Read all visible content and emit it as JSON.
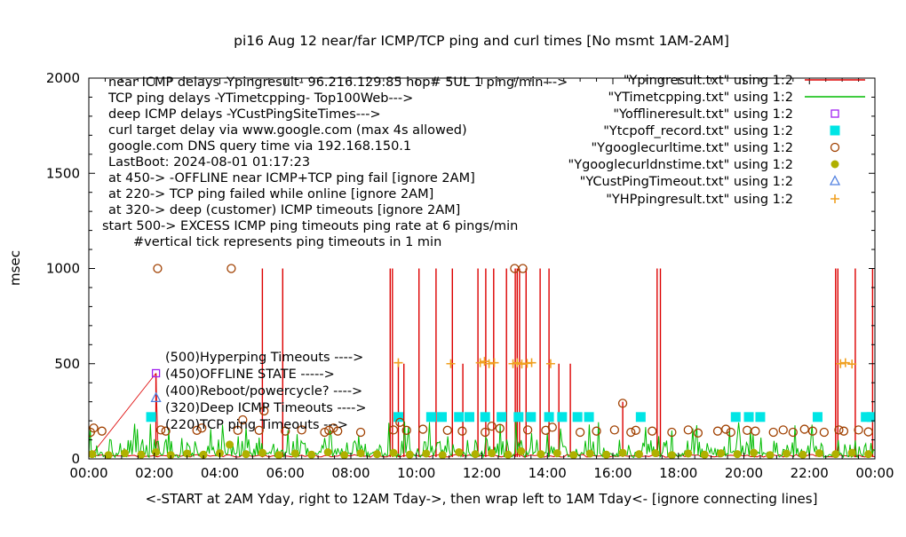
{
  "page": {
    "background": "#ffffff",
    "axis_color": "#000000"
  },
  "chart_data": {
    "type": "line",
    "title": "pi16 Aug 12  near/far ICMP/TCP ping and curl times [No msmt 1AM-2AM]",
    "ylabel": "msec",
    "xlabel": "<-START at 2AM Yday, right to 12AM Tday->, then wrap left to 1AM Tday<- [ignore connecting lines]",
    "xlim_hours": [
      0,
      24
    ],
    "ylim": [
      0,
      2000
    ],
    "yticks": [
      0,
      500,
      1000,
      1500,
      2000
    ],
    "xtick_labels": [
      "00:00",
      "02:00",
      "04:00",
      "06:00",
      "08:00",
      "10:00",
      "12:00",
      "14:00",
      "16:00",
      "18:00",
      "20:00",
      "22:00",
      "00:00"
    ],
    "grid": false,
    "legend_position": "top-right",
    "annotations": [
      "near ICMP delays -Ypingresult- 96.216.129.85 hop# 5UL 1 ping/min--->",
      "TCP ping delays -YTimetcpping- Top100Web--->",
      "deep ICMP delays -YCustPingSiteTimes--->",
      "curl target delay via www.google.com (max 4s allowed)",
      "google.com DNS query time via 192.168.150.1",
      "LastBoot: 2024-08-01 01:17:23",
      "at 450-> -OFFLINE near ICMP+TCP ping fail [ignore 2AM]",
      "at 220-> TCP ping failed while online [ignore 2AM]",
      "at 320-> deep (customer) ICMP timeouts [ignore 2AM]",
      "start 500-> EXCESS ICMP ping timeouts ping rate at 6 pings/min",
      "#vertical tick represents ping timeouts in 1 min"
    ],
    "threshold_labels": [
      "(500)Hyperping Timeouts ---->",
      "(450)OFFLINE STATE ----->",
      "(400)Reboot/powercycle? ---->",
      "(320)Deep ICMP Timeouts ---->",
      "(220)TCP ping Timeouts --->"
    ],
    "series": [
      {
        "key": "ping",
        "label": "\"Ypingresult.txt\" using 1:2",
        "type": "impulse-line",
        "color": "#dd0000",
        "baseline_msec": 15,
        "impulses": [
          [
            2.05,
            450
          ],
          [
            5.3,
            1000
          ],
          [
            5.92,
            1000
          ],
          [
            9.2,
            1000
          ],
          [
            9.27,
            1000
          ],
          [
            9.45,
            510
          ],
          [
            9.62,
            500
          ],
          [
            10.08,
            1000
          ],
          [
            10.6,
            1000
          ],
          [
            11.1,
            1000
          ],
          [
            11.42,
            500
          ],
          [
            11.88,
            1000
          ],
          [
            12.12,
            1000
          ],
          [
            12.36,
            1000
          ],
          [
            12.75,
            1000
          ],
          [
            13.02,
            1000
          ],
          [
            13.08,
            1000
          ],
          [
            13.15,
            1000
          ],
          [
            13.35,
            1000
          ],
          [
            13.78,
            1000
          ],
          [
            14.05,
            1000
          ],
          [
            14.35,
            500
          ],
          [
            14.7,
            500
          ],
          [
            16.3,
            300
          ],
          [
            17.35,
            1000
          ],
          [
            17.45,
            1000
          ],
          [
            22.8,
            1000
          ],
          [
            22.87,
            1000
          ],
          [
            23.4,
            1000
          ],
          [
            23.93,
            1000
          ]
        ],
        "connect_segments": [
          [
            [
              0.1,
              25
            ],
            [
              2.05,
              450
            ]
          ],
          [
            [
              2.05,
              450
            ],
            [
              2.12,
              20
            ]
          ]
        ]
      },
      {
        "key": "tcpping",
        "label": "\"YTimetcpping.txt\" using 1:2",
        "type": "noise-line",
        "color": "#00bb00",
        "noise": {
          "base": 8,
          "mid": 60,
          "max": 200,
          "seed": 7
        }
      },
      {
        "key": "offline",
        "label": "\"Yofflineresult.txt\" using 1:2",
        "type": "scatter",
        "marker": "open-square",
        "color": "#a020f0",
        "points": [
          [
            2.05,
            450
          ]
        ]
      },
      {
        "key": "tcpoff",
        "label": "\"Ytcpoff_record.txt\" using 1:2",
        "type": "scatter",
        "marker": "filled-square",
        "color": "#00e5e5",
        "points": [
          [
            1.9,
            220
          ],
          [
            9.45,
            220
          ],
          [
            10.45,
            220
          ],
          [
            10.78,
            220
          ],
          [
            11.3,
            220
          ],
          [
            11.62,
            220
          ],
          [
            12.1,
            220
          ],
          [
            12.6,
            220
          ],
          [
            13.12,
            220
          ],
          [
            13.5,
            220
          ],
          [
            14.05,
            220
          ],
          [
            14.45,
            220
          ],
          [
            14.92,
            220
          ],
          [
            15.27,
            220
          ],
          [
            16.85,
            220
          ],
          [
            19.75,
            220
          ],
          [
            20.15,
            220
          ],
          [
            20.5,
            220
          ],
          [
            22.25,
            220
          ],
          [
            23.72,
            220
          ],
          [
            23.9,
            220
          ]
        ]
      },
      {
        "key": "curl",
        "label": "\"Ygooglecurltime.txt\" using 1:2",
        "type": "scatter",
        "marker": "open-circle",
        "color": "#a04000",
        "points": [
          [
            0.05,
            140
          ],
          [
            0.15,
            162
          ],
          [
            0.4,
            146
          ],
          [
            2.1,
            1000
          ],
          [
            2.2,
            152
          ],
          [
            2.35,
            146
          ],
          [
            3.3,
            150
          ],
          [
            3.45,
            162
          ],
          [
            4.35,
            1000
          ],
          [
            4.55,
            150
          ],
          [
            4.7,
            205
          ],
          [
            5.2,
            150
          ],
          [
            5.35,
            252
          ],
          [
            6.0,
            146
          ],
          [
            6.5,
            152
          ],
          [
            7.2,
            140
          ],
          [
            7.33,
            150
          ],
          [
            7.47,
            162
          ],
          [
            7.6,
            146
          ],
          [
            8.3,
            140
          ],
          [
            9.3,
            152
          ],
          [
            9.5,
            192
          ],
          [
            9.7,
            150
          ],
          [
            10.2,
            156
          ],
          [
            10.95,
            150
          ],
          [
            11.4,
            146
          ],
          [
            12.1,
            140
          ],
          [
            12.3,
            172
          ],
          [
            12.55,
            160
          ],
          [
            13.0,
            1000
          ],
          [
            13.25,
            1000
          ],
          [
            13.4,
            152
          ],
          [
            13.95,
            150
          ],
          [
            14.15,
            166
          ],
          [
            15.0,
            140
          ],
          [
            15.5,
            146
          ],
          [
            16.05,
            152
          ],
          [
            16.3,
            292
          ],
          [
            16.55,
            140
          ],
          [
            16.7,
            150
          ],
          [
            17.2,
            146
          ],
          [
            17.8,
            140
          ],
          [
            18.3,
            152
          ],
          [
            18.6,
            136
          ],
          [
            19.2,
            146
          ],
          [
            19.45,
            156
          ],
          [
            19.6,
            140
          ],
          [
            20.1,
            150
          ],
          [
            20.35,
            146
          ],
          [
            20.9,
            140
          ],
          [
            21.2,
            152
          ],
          [
            21.5,
            140
          ],
          [
            21.85,
            156
          ],
          [
            22.1,
            146
          ],
          [
            22.45,
            140
          ],
          [
            22.9,
            152
          ],
          [
            23.05,
            146
          ],
          [
            23.5,
            152
          ],
          [
            23.8,
            142
          ]
        ]
      },
      {
        "key": "dns",
        "label": "\"Ygooglecurldnstime.txt\" using 1:2",
        "type": "scatter",
        "marker": "filled-circle",
        "color": "#b0b000",
        "points": [
          [
            0.1,
            25
          ],
          [
            0.6,
            20
          ],
          [
            1.1,
            30
          ],
          [
            1.6,
            22
          ],
          [
            2.05,
            35
          ],
          [
            2.5,
            20
          ],
          [
            3.0,
            28
          ],
          [
            3.5,
            22
          ],
          [
            4.0,
            30
          ],
          [
            4.3,
            75
          ],
          [
            4.8,
            25
          ],
          [
            5.3,
            32
          ],
          [
            5.8,
            20
          ],
          [
            6.3,
            28
          ],
          [
            6.8,
            22
          ],
          [
            7.3,
            35
          ],
          [
            7.8,
            20
          ],
          [
            8.3,
            30
          ],
          [
            8.8,
            25
          ],
          [
            9.3,
            32
          ],
          [
            9.8,
            22
          ],
          [
            10.3,
            28
          ],
          [
            10.8,
            20
          ],
          [
            11.3,
            35
          ],
          [
            11.8,
            25
          ],
          [
            12.3,
            30
          ],
          [
            12.8,
            22
          ],
          [
            13.2,
            40
          ],
          [
            13.8,
            25
          ],
          [
            14.3,
            30
          ],
          [
            14.8,
            20
          ],
          [
            15.3,
            28
          ],
          [
            15.8,
            22
          ],
          [
            16.3,
            32
          ],
          [
            16.8,
            25
          ],
          [
            17.3,
            30
          ],
          [
            17.8,
            20
          ],
          [
            18.3,
            28
          ],
          [
            18.8,
            22
          ],
          [
            19.3,
            30
          ],
          [
            19.8,
            25
          ],
          [
            20.3,
            32
          ],
          [
            20.8,
            20
          ],
          [
            21.3,
            28
          ],
          [
            21.8,
            22
          ],
          [
            22.3,
            30
          ],
          [
            22.8,
            25
          ],
          [
            23.3,
            32
          ],
          [
            23.8,
            25
          ]
        ]
      },
      {
        "key": "custping",
        "label": "\"YCustPingTimeout.txt\" using 1:2",
        "type": "scatter",
        "marker": "open-triangle",
        "color": "#5080e0",
        "points": [
          [
            2.05,
            320
          ]
        ]
      },
      {
        "key": "hpping",
        "label": "\"YHPpingresult.txt\" using 1:2",
        "type": "scatter",
        "marker": "plus",
        "color": "#f0a020",
        "points": [
          [
            9.45,
            505
          ],
          [
            11.05,
            500
          ],
          [
            11.95,
            505
          ],
          [
            12.08,
            512
          ],
          [
            12.22,
            500
          ],
          [
            12.38,
            505
          ],
          [
            12.95,
            500
          ],
          [
            13.08,
            505
          ],
          [
            13.22,
            498
          ],
          [
            13.38,
            502
          ],
          [
            13.52,
            505
          ],
          [
            14.1,
            500
          ],
          [
            22.95,
            500
          ],
          [
            23.1,
            505
          ],
          [
            23.3,
            498
          ]
        ]
      }
    ]
  }
}
